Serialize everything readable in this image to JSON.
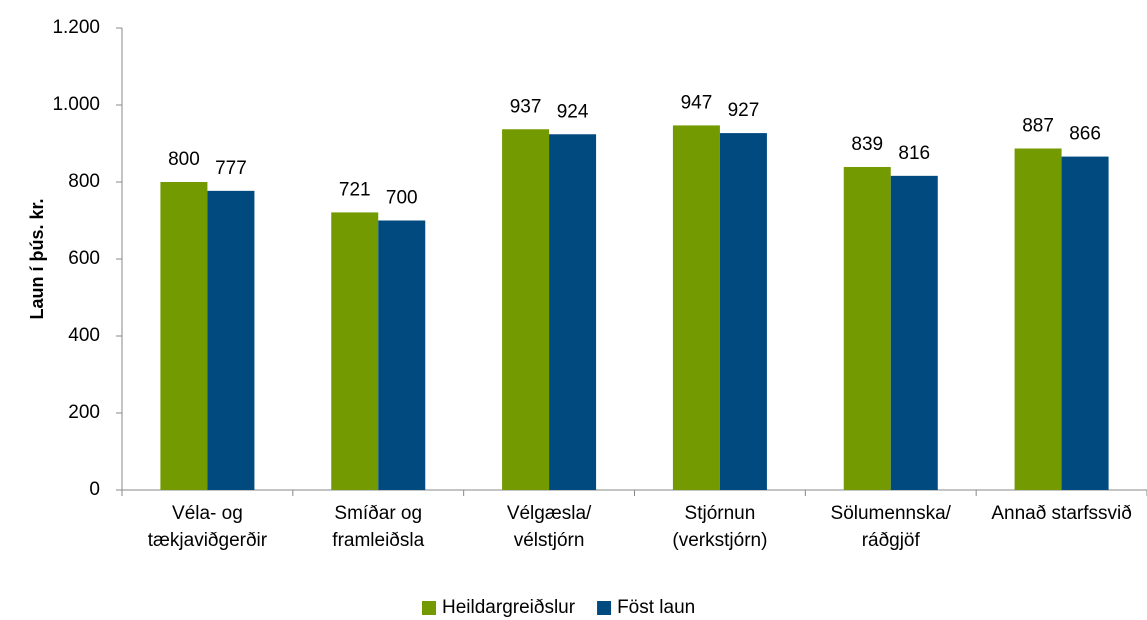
{
  "chart_data": {
    "type": "bar",
    "ylabel": "Laun í þús. kr.",
    "categories": [
      "Véla- og\ntækjaviðgerðir",
      "Smíðar og\nframleiðsla",
      "Vélgæsla/\nvélstjórn",
      "Stjórnun\n(verkstjórn)",
      "Sölumennska/\nráðgjöf",
      "Annað starfssvið"
    ],
    "series": [
      {
        "name": "Heildargreiðslur",
        "color": "#739a00",
        "values": [
          800,
          721,
          937,
          947,
          839,
          887
        ]
      },
      {
        "name": "Föst laun",
        "color": "#004a80",
        "values": [
          777,
          700,
          924,
          927,
          816,
          866
        ]
      }
    ],
    "ylim": [
      0,
      1200
    ],
    "yticks": [
      0,
      200,
      400,
      600,
      800,
      {
        "value": 1000,
        "label": "1.000"
      },
      {
        "value": 1200,
        "label": "1.200"
      }
    ],
    "grid": false,
    "legend": "bottom"
  }
}
